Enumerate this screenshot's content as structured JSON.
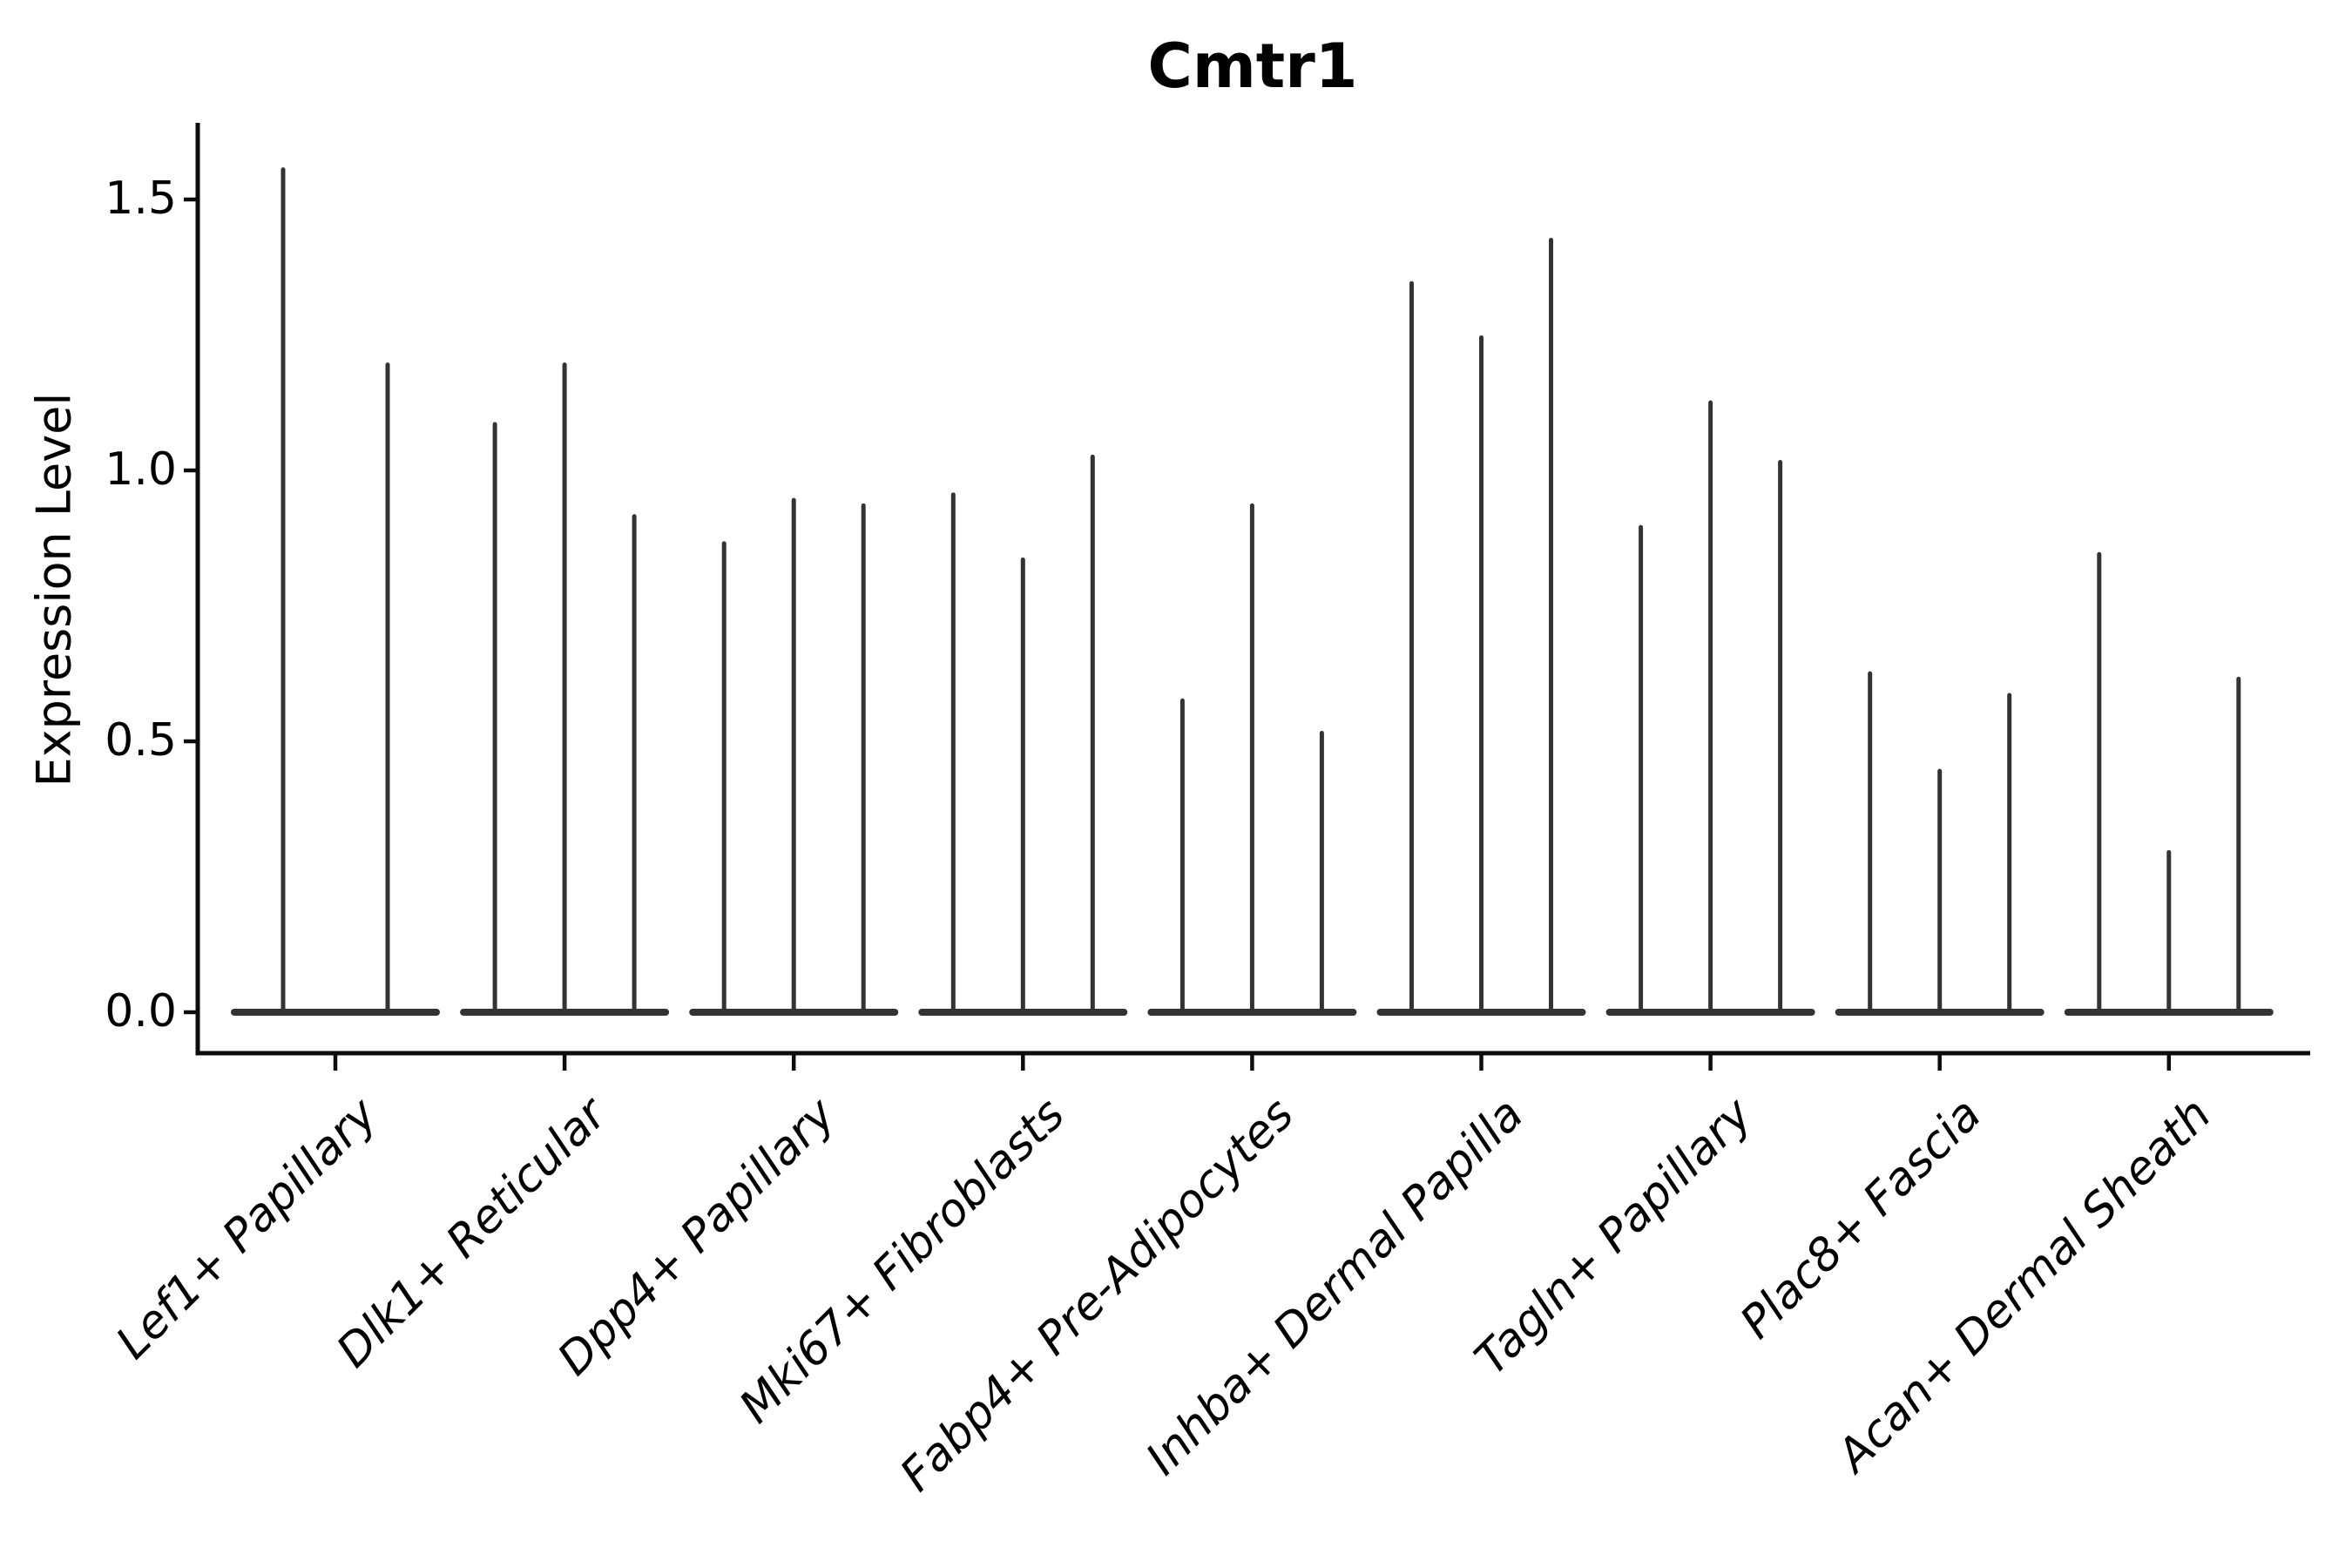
{
  "chart_data": {
    "type": "violin",
    "title": "Cmtr1",
    "xlabel": "",
    "ylabel": "Expression Level",
    "ylim": [
      0,
      1.65
    ],
    "yticks": [
      0.0,
      0.5,
      1.0,
      1.5
    ],
    "ytick_labels": [
      "0.0",
      "0.5",
      "1.0",
      "1.5"
    ],
    "grid": false,
    "legend": "none",
    "categories": [
      "Lef1+ Papillary",
      "Dlk1+ Reticular",
      "Dpp4+ Papillary",
      "Mki67+ Fibroblasts",
      "Fabp4+ Pre-Adipocytes",
      "Inhba+ Dermal Papilla",
      "Tagln+ Papillary",
      "Plac8+ Fascia",
      "Acan+ Dermal Sheath"
    ],
    "series": [
      {
        "category": "Lef1+ Papillary",
        "violin_max_values": [
          1.56,
          1.2
        ]
      },
      {
        "category": "Dlk1+ Reticular",
        "violin_max_values": [
          1.09,
          1.2,
          0.92
        ]
      },
      {
        "category": "Dpp4+ Papillary",
        "violin_max_values": [
          0.87,
          0.95,
          0.94
        ]
      },
      {
        "category": "Mki67+ Fibroblasts",
        "violin_max_values": [
          0.96,
          0.84,
          1.03
        ]
      },
      {
        "category": "Fabp4+ Pre-Adipocytes",
        "violin_max_values": [
          0.58,
          0.94,
          0.52
        ]
      },
      {
        "category": "Inhba+ Dermal Papilla",
        "violin_max_values": [
          1.35,
          1.25,
          1.43
        ]
      },
      {
        "category": "Tagln+ Papillary",
        "violin_max_values": [
          0.9,
          1.13,
          1.02
        ]
      },
      {
        "category": "Plac8+ Fascia",
        "violin_max_values": [
          0.63,
          0.45,
          0.59
        ]
      },
      {
        "category": "Acan+ Dermal Sheath",
        "violin_max_values": [
          0.85,
          0.3,
          0.62
        ]
      }
    ],
    "description": "Violin plot; each category shows thin spike-shaped violins (mass concentrated at 0 with long narrow tails up to the max value)."
  },
  "style": {
    "background_color": "#ffffff",
    "violin_color": "#333333",
    "axis_color": "#0d0d0d",
    "text_color": "#000000"
  }
}
